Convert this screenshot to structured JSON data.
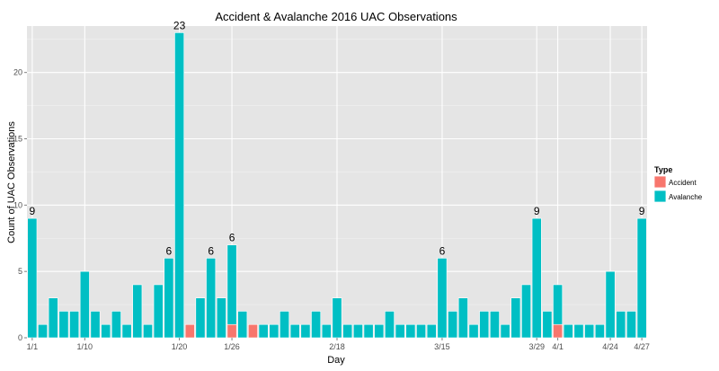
{
  "chart_data": {
    "type": "bar",
    "stacked": true,
    "title": "Accident & Avalanche 2016 UAC Observations",
    "xlabel": "Day",
    "ylabel": "Count of UAC Observations",
    "ylim": [
      0,
      23.5
    ],
    "y_ticks": [
      0,
      5,
      10,
      15,
      20
    ],
    "x_tick_labels": [
      {
        "index": 0,
        "label": "1/1"
      },
      {
        "index": 5,
        "label": "1/10"
      },
      {
        "index": 14,
        "label": "1/20"
      },
      {
        "index": 19,
        "label": "1/26"
      },
      {
        "index": 29,
        "label": "2/18"
      },
      {
        "index": 39,
        "label": "3/15"
      },
      {
        "index": 48,
        "label": "3/29"
      },
      {
        "index": 50,
        "label": "4/1"
      },
      {
        "index": 55,
        "label": "4/24"
      },
      {
        "index": 58,
        "label": "4/27"
      }
    ],
    "legend": {
      "title": "Type",
      "position": "right",
      "entries": [
        "Accident",
        "Avalanche"
      ]
    },
    "colors": {
      "Accident": "#f8766d",
      "Avalanche": "#00bfc4",
      "panel": "#e5e5e5",
      "grid": "#ffffff"
    },
    "grid": true,
    "series": [
      {
        "name": "Accident",
        "values": [
          0,
          0,
          0,
          0,
          0,
          0,
          0,
          0,
          0,
          0,
          0,
          0,
          0,
          0,
          0,
          1,
          0,
          0,
          0,
          1,
          0,
          1,
          0,
          0,
          0,
          0,
          0,
          0,
          0,
          0,
          0,
          0,
          0,
          0,
          0,
          0,
          0,
          0,
          0,
          0,
          0,
          0,
          0,
          0,
          0,
          0,
          0,
          0,
          0,
          0,
          1,
          0,
          0,
          0,
          0,
          0,
          0,
          0,
          0
        ]
      },
      {
        "name": "Avalanche",
        "values": [
          9,
          1,
          3,
          2,
          2,
          5,
          2,
          1,
          2,
          1,
          4,
          1,
          4,
          6,
          23,
          0,
          3,
          6,
          3,
          6,
          2,
          0,
          1,
          1,
          2,
          1,
          1,
          2,
          1,
          3,
          1,
          1,
          1,
          1,
          2,
          1,
          1,
          1,
          1,
          6,
          2,
          3,
          1,
          2,
          2,
          1,
          3,
          4,
          9,
          2,
          3,
          1,
          1,
          1,
          1,
          5,
          2,
          2,
          9
        ]
      }
    ],
    "annotations": [
      {
        "index": 0,
        "label": "9"
      },
      {
        "index": 13,
        "label": "6"
      },
      {
        "index": 14,
        "label": "23"
      },
      {
        "index": 17,
        "label": "6"
      },
      {
        "index": 19,
        "label": "6"
      },
      {
        "index": 39,
        "label": "6"
      },
      {
        "index": 48,
        "label": "9"
      },
      {
        "index": 58,
        "label": "9"
      }
    ]
  }
}
